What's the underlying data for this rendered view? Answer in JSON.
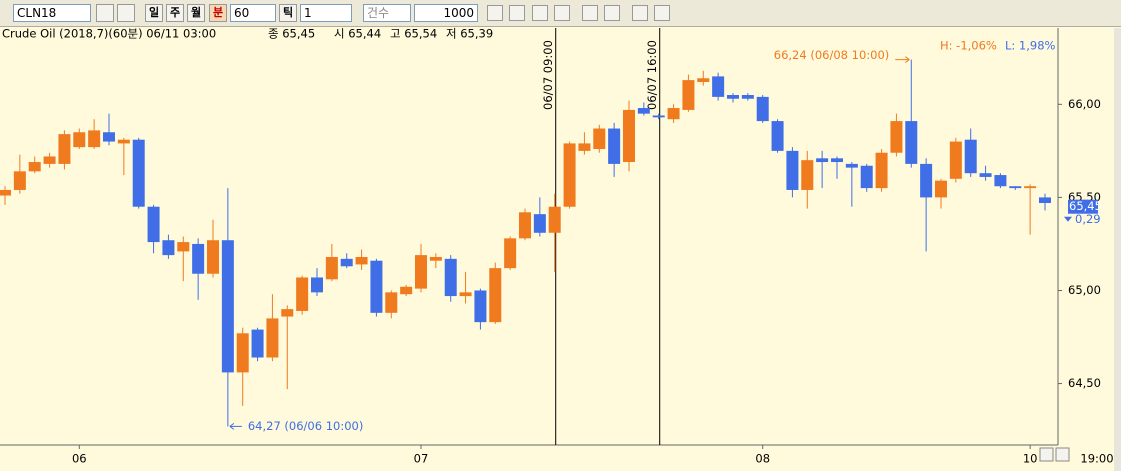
{
  "toolbar": {
    "symbol": "CLN18",
    "day": "일",
    "week": "주",
    "month": "월",
    "minute": "분",
    "interval": "60",
    "tick": "틱",
    "tick_count": "1",
    "count_label": "건수",
    "count": "1000"
  },
  "chart_data": {
    "type": "candlestick",
    "header": {
      "name": "Crude Oil (2018,7)(60분) 06/11 03:00",
      "close": "종 65,45",
      "open": "시 65,44",
      "high": "고 65,54",
      "low": "저 65,39"
    },
    "categories": [
      null,
      null,
      null,
      null,
      null,
      "06",
      null,
      null,
      null,
      null,
      null,
      null,
      null,
      null,
      null,
      null,
      null,
      null,
      null,
      null,
      null,
      null,
      null,
      null,
      null,
      null,
      null,
      null,
      "07",
      null,
      null,
      null,
      null,
      null,
      null,
      null,
      null,
      null,
      null,
      null,
      null,
      null,
      null,
      null,
      null,
      null,
      null,
      null,
      null,
      null,
      null,
      "08",
      null,
      null,
      null,
      null,
      null,
      null,
      null,
      null,
      null,
      null,
      null,
      null,
      null,
      null,
      null,
      null,
      null,
      "10",
      null
    ],
    "time_label": "19:00",
    "up_color": "#f07a1e",
    "down_color": "#3f6ee6",
    "open": [
      65.51,
      65.54,
      65.64,
      65.68,
      65.68,
      65.77,
      65.77,
      65.85,
      65.79,
      65.81,
      65.45,
      65.27,
      65.21,
      65.25,
      65.09,
      65.27,
      64.56,
      64.79,
      64.64,
      64.86,
      64.89,
      65.07,
      65.06,
      65.17,
      65.14,
      65.16,
      64.88,
      64.98,
      65.01,
      65.16,
      65.17,
      64.97,
      65.0,
      64.83,
      65.12,
      65.28,
      65.41,
      65.31,
      65.45,
      65.75,
      65.76,
      65.87,
      65.69,
      65.98,
      65.94,
      65.92,
      65.97,
      66.12,
      66.15,
      66.05,
      66.05,
      66.04,
      65.91,
      65.75,
      65.54,
      65.71,
      65.71,
      65.68,
      65.67,
      65.55,
      65.74,
      65.91,
      65.68,
      65.5,
      65.6,
      65.81,
      65.63,
      65.62,
      65.56,
      65.55,
      65.5
    ],
    "high": [
      65.56,
      65.73,
      65.72,
      65.74,
      65.86,
      65.87,
      65.92,
      65.95,
      65.82,
      65.82,
      65.46,
      65.3,
      65.29,
      65.28,
      65.38,
      65.55,
      64.8,
      64.8,
      64.98,
      64.92,
      65.08,
      65.12,
      65.25,
      65.2,
      65.22,
      65.17,
      65.0,
      65.03,
      65.25,
      65.2,
      65.19,
      65.1,
      65.01,
      65.15,
      65.29,
      65.44,
      65.5,
      65.52,
      65.8,
      65.85,
      65.89,
      65.9,
      66.02,
      66.01,
      65.95,
      66.0,
      66.16,
      66.18,
      66.17,
      66.06,
      66.06,
      66.05,
      65.92,
      65.77,
      65.75,
      65.75,
      65.72,
      65.69,
      65.68,
      65.76,
      65.95,
      66.24,
      65.71,
      65.6,
      65.82,
      65.87,
      65.67,
      65.63,
      65.56,
      65.57,
      65.52
    ],
    "low": [
      65.46,
      65.52,
      65.63,
      65.66,
      65.65,
      65.76,
      65.76,
      65.78,
      65.62,
      65.44,
      65.2,
      65.17,
      65.05,
      64.95,
      65.07,
      64.27,
      64.38,
      64.62,
      64.62,
      64.47,
      64.87,
      64.97,
      65.05,
      65.12,
      65.11,
      64.86,
      64.85,
      64.97,
      64.99,
      65.12,
      64.94,
      64.93,
      64.79,
      64.82,
      65.11,
      65.27,
      65.29,
      65.1,
      65.44,
      65.73,
      65.74,
      65.61,
      65.64,
      65.94,
      65.92,
      65.9,
      65.96,
      66.1,
      66.02,
      66.01,
      66.02,
      65.9,
      65.74,
      65.5,
      65.44,
      65.55,
      65.6,
      65.45,
      65.53,
      65.53,
      65.72,
      65.66,
      65.21,
      65.44,
      65.58,
      65.61,
      65.59,
      65.55,
      65.54,
      65.3,
      65.43
    ],
    "close": [
      65.54,
      65.64,
      65.69,
      65.72,
      65.84,
      65.85,
      65.86,
      65.8,
      65.81,
      65.45,
      65.26,
      65.19,
      65.26,
      65.09,
      65.27,
      64.56,
      64.77,
      64.64,
      64.85,
      64.9,
      65.07,
      64.99,
      65.18,
      65.13,
      65.18,
      64.88,
      64.99,
      65.02,
      65.19,
      65.18,
      64.97,
      64.99,
      64.83,
      65.12,
      65.28,
      65.42,
      65.31,
      65.45,
      65.79,
      65.79,
      65.87,
      65.68,
      65.97,
      65.95,
      65.93,
      65.98,
      66.13,
      66.14,
      66.04,
      66.03,
      66.03,
      65.91,
      65.75,
      65.54,
      65.7,
      65.69,
      65.69,
      65.66,
      65.55,
      65.74,
      65.91,
      65.68,
      65.5,
      65.59,
      65.8,
      65.63,
      65.61,
      65.56,
      65.55,
      65.56,
      65.47
    ],
    "ylim": [
      64.17,
      66.41
    ],
    "yticks": [
      {
        "value": 64.5,
        "label": "64,50"
      },
      {
        "value": 65,
        "label": "65,00"
      },
      {
        "value": 65.5,
        "label": "65,50"
      },
      {
        "value": 66,
        "label": "66,00"
      }
    ],
    "vlines": [
      {
        "at": 37,
        "label": "06/07 09:00"
      },
      {
        "at": 44,
        "label": "06/07 16:00"
      }
    ],
    "low_note": {
      "at": 15,
      "value": 64.27,
      "label": "64,27 (06/06 10:00)",
      "color": "#3f6ee6"
    },
    "high_note": {
      "at": 61,
      "value": 66.24,
      "label": "66,24 (06/08 10:00)",
      "color": "#f07a1e"
    },
    "range_high": "H: -1,06%",
    "range_low": "L: 1,98%",
    "last_price": {
      "value": 65.45,
      "label": "65,45"
    },
    "change": "0,29"
  }
}
